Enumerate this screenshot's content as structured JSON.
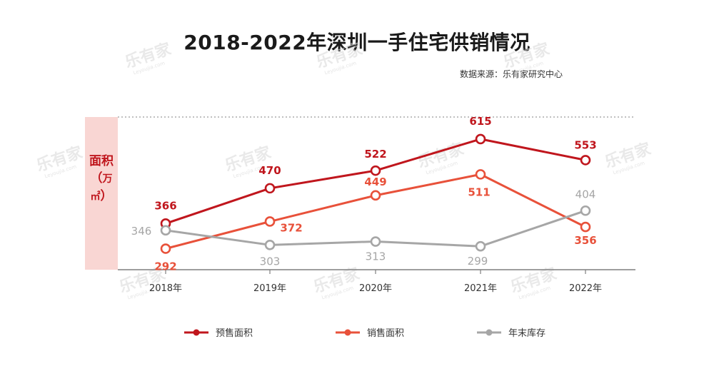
{
  "title": "2018-2022年深圳一手住宅供销情况",
  "source": "数据来源：乐有家研究中心",
  "watermark": "乐有家",
  "watermark_sub": "Leyoujia.com",
  "chart_data": {
    "type": "line",
    "title": "2018-2022年深圳一手住宅供销情况",
    "categories": [
      "2018年",
      "2019年",
      "2020年",
      "2021年",
      "2022年"
    ],
    "ylabel": "面积（万㎡）",
    "ylabel_main": "面积（",
    "ylabel_unit": "万㎡",
    "ylabel_close": "）",
    "series": [
      {
        "name": "预售面积",
        "values": [
          366,
          470,
          522,
          615,
          553
        ],
        "color": "#c0161d"
      },
      {
        "name": "销售面积",
        "values": [
          292,
          372,
          449,
          511,
          356
        ],
        "color": "#e8513a"
      },
      {
        "name": "年末库存",
        "values": [
          346,
          303,
          313,
          299,
          404
        ],
        "color": "#a6a6a6"
      }
    ],
    "ylim": [
      230,
      680
    ],
    "grid": false,
    "legend": "bottom"
  }
}
